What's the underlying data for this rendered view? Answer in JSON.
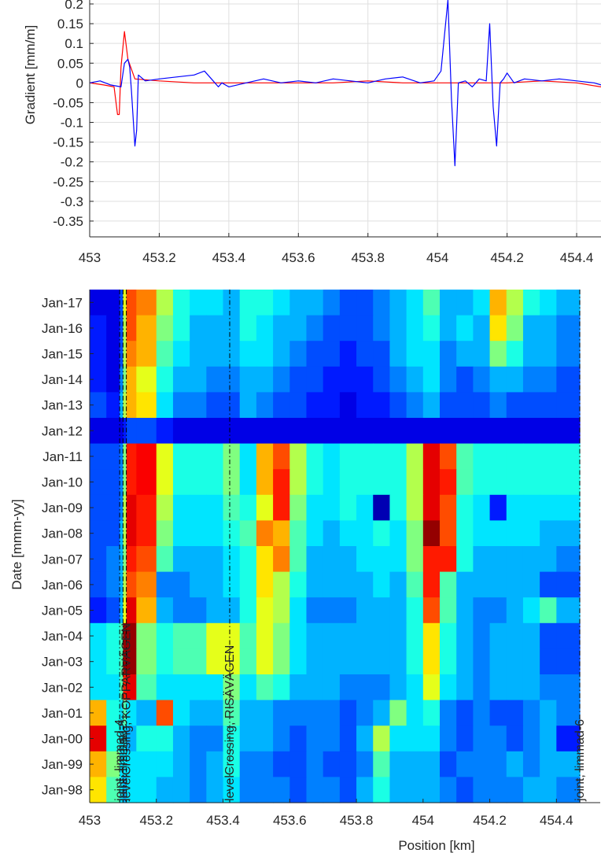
{
  "chart_data": [
    {
      "type": "line",
      "ylabel": "Gradient [mm/m]",
      "xlim": [
        453,
        454.47
      ],
      "ylim": [
        -0.39,
        0.21
      ],
      "grid": true,
      "xticks": [
        "453",
        "453.2",
        "453.4",
        "453.6",
        "453.8",
        "454",
        "454.2",
        "454.4"
      ],
      "yticks": [
        "0.2",
        "0.15",
        "0.1",
        "0.05",
        "0",
        "-0.05",
        "-0.1",
        "-0.15",
        "-0.2",
        "-0.25",
        "-0.3",
        "-0.35"
      ],
      "colors": {
        "blue": "#0000ff",
        "red": "#ff0000"
      },
      "series": [
        {
          "color": "#0000ff",
          "x": [
            453.0,
            453.03,
            453.06,
            453.09,
            453.1,
            453.11,
            453.115,
            453.12,
            453.13,
            453.135,
            453.14,
            453.16,
            453.2,
            453.25,
            453.3,
            453.33,
            453.35,
            453.37,
            453.38,
            453.4,
            453.45,
            453.5,
            453.55,
            453.6,
            453.65,
            453.7,
            453.75,
            453.8,
            453.85,
            453.9,
            453.95,
            453.99,
            454.01,
            454.02,
            454.03,
            454.04,
            454.05,
            454.06,
            454.08,
            454.1,
            454.12,
            454.14,
            454.15,
            454.16,
            454.17,
            454.18,
            454.19,
            454.2,
            454.22,
            454.25,
            454.3,
            454.35,
            454.4,
            454.45,
            454.47
          ],
          "y": [
            0.0,
            0.005,
            -0.005,
            -0.01,
            0.05,
            0.06,
            0.04,
            -0.02,
            -0.16,
            -0.12,
            0.02,
            0.005,
            0.01,
            0.015,
            0.02,
            0.03,
            0.01,
            -0.01,
            0.0,
            -0.01,
            0.0,
            0.01,
            0.0,
            0.005,
            0.0,
            0.01,
            0.005,
            0.0,
            0.01,
            0.015,
            0.0,
            0.005,
            0.03,
            0.12,
            0.21,
            -0.04,
            -0.21,
            0.0,
            0.005,
            -0.01,
            0.01,
            0.005,
            0.15,
            -0.06,
            -0.16,
            0.0,
            0.01,
            0.025,
            0.0,
            0.01,
            0.005,
            0.01,
            0.005,
            0.0,
            -0.005
          ]
        },
        {
          "color": "#ff0000",
          "x": [
            453.0,
            453.04,
            453.07,
            453.08,
            453.085,
            453.09,
            453.1,
            453.11,
            453.13,
            453.2,
            453.3,
            453.4,
            453.5,
            453.6,
            453.7,
            453.8,
            453.9,
            454.0,
            454.1,
            454.2,
            454.3,
            454.4,
            454.47
          ],
          "y": [
            0.0,
            -0.005,
            -0.01,
            -0.08,
            -0.08,
            0.04,
            0.13,
            0.06,
            0.01,
            0.005,
            0.0,
            0.0,
            0.0,
            0.0,
            0.0,
            0.005,
            0.0,
            0.0,
            0.0,
            0.0,
            0.005,
            0.0,
            -0.01
          ]
        }
      ]
    },
    {
      "type": "heatmap",
      "xlabel": "Position [km]",
      "ylabel": "Date [mmm-yy]",
      "xlim": [
        453,
        454.47
      ],
      "xticks": [
        "453",
        "453.2",
        "453.4",
        "453.6",
        "453.8",
        "454",
        "454.2",
        "454.4"
      ],
      "yticks": [
        "Jan-17",
        "Jan-16",
        "Jan-15",
        "Jan-14",
        "Jan-13",
        "Jan-12",
        "Jan-11",
        "Jan-10",
        "Jan-09",
        "Jan-08",
        "Jan-07",
        "Jan-06",
        "Jan-05",
        "Jan-04",
        "Jan-03",
        "Jan-02",
        "Jan-01",
        "Jan-00",
        "Jan-99",
        "Jan-98"
      ],
      "colormap": "jet",
      "x_edges": [
        453.0,
        453.05,
        453.09,
        453.1,
        453.11,
        453.14,
        453.2,
        453.25,
        453.3,
        453.35,
        453.4,
        453.45,
        453.5,
        453.55,
        453.6,
        453.65,
        453.7,
        453.75,
        453.8,
        453.85,
        453.9,
        453.95,
        454.0,
        454.05,
        454.1,
        454.15,
        454.2,
        454.25,
        454.3,
        454.35,
        454.4,
        454.47
      ],
      "rows": [
        {
          "label": "Jan-17",
          "values": [
            0.1,
            0.1,
            0.2,
            0.6,
            0.8,
            0.75,
            0.55,
            0.4,
            0.35,
            0.35,
            0.3,
            0.4,
            0.4,
            0.35,
            0.3,
            0.3,
            0.25,
            0.2,
            0.2,
            0.25,
            0.3,
            0.35,
            0.45,
            0.3,
            0.3,
            0.35,
            0.7,
            0.55,
            0.4,
            0.35,
            0.3
          ]
        },
        {
          "label": "Jan-16",
          "values": [
            0.15,
            0.1,
            0.2,
            0.55,
            0.8,
            0.7,
            0.5,
            0.4,
            0.3,
            0.3,
            0.3,
            0.4,
            0.35,
            0.3,
            0.3,
            0.25,
            0.2,
            0.2,
            0.2,
            0.25,
            0.3,
            0.35,
            0.4,
            0.3,
            0.35,
            0.3,
            0.65,
            0.5,
            0.3,
            0.3,
            0.25
          ]
        },
        {
          "label": "Jan-15",
          "values": [
            0.15,
            0.1,
            0.2,
            0.55,
            0.75,
            0.7,
            0.45,
            0.35,
            0.3,
            0.3,
            0.3,
            0.35,
            0.35,
            0.3,
            0.25,
            0.2,
            0.2,
            0.15,
            0.2,
            0.2,
            0.3,
            0.35,
            0.35,
            0.25,
            0.3,
            0.3,
            0.5,
            0.4,
            0.3,
            0.3,
            0.25
          ]
        },
        {
          "label": "Jan-14",
          "values": [
            0.15,
            0.1,
            0.25,
            0.5,
            0.7,
            0.6,
            0.4,
            0.3,
            0.3,
            0.25,
            0.25,
            0.3,
            0.3,
            0.25,
            0.2,
            0.2,
            0.15,
            0.15,
            0.15,
            0.2,
            0.25,
            0.3,
            0.35,
            0.25,
            0.2,
            0.25,
            0.3,
            0.3,
            0.25,
            0.25,
            0.2
          ]
        },
        {
          "label": "Jan-13",
          "values": [
            0.2,
            0.15,
            0.3,
            0.55,
            0.7,
            0.65,
            0.35,
            0.25,
            0.25,
            0.2,
            0.2,
            0.3,
            0.25,
            0.2,
            0.2,
            0.15,
            0.15,
            0.1,
            0.15,
            0.15,
            0.2,
            0.25,
            0.3,
            0.2,
            0.2,
            0.2,
            0.25,
            0.2,
            0.2,
            0.2,
            0.2
          ]
        },
        {
          "label": "Jan-12",
          "values": [
            0.1,
            0.1,
            0.1,
            0.15,
            0.2,
            0.2,
            0.15,
            0.1,
            0.1,
            0.1,
            0.1,
            0.1,
            0.1,
            0.1,
            0.1,
            0.1,
            0.1,
            0.1,
            0.1,
            0.1,
            0.1,
            0.1,
            0.1,
            0.1,
            0.1,
            0.1,
            0.1,
            0.1,
            0.1,
            0.1,
            0.1
          ]
        },
        {
          "label": "Jan-11",
          "values": [
            0.2,
            0.2,
            0.25,
            0.5,
            0.85,
            0.88,
            0.6,
            0.4,
            0.4,
            0.4,
            0.5,
            0.35,
            0.7,
            0.8,
            0.55,
            0.4,
            0.35,
            0.4,
            0.4,
            0.4,
            0.4,
            0.55,
            0.9,
            0.8,
            0.45,
            0.4,
            0.4,
            0.4,
            0.4,
            0.4,
            0.4
          ]
        },
        {
          "label": "Jan-10",
          "values": [
            0.2,
            0.2,
            0.25,
            0.5,
            0.85,
            0.88,
            0.6,
            0.4,
            0.4,
            0.4,
            0.5,
            0.35,
            0.7,
            0.85,
            0.55,
            0.4,
            0.35,
            0.4,
            0.4,
            0.4,
            0.4,
            0.55,
            0.9,
            0.85,
            0.45,
            0.4,
            0.4,
            0.4,
            0.4,
            0.4,
            0.4
          ]
        },
        {
          "label": "Jan-09",
          "values": [
            0.2,
            0.2,
            0.25,
            0.55,
            0.9,
            0.85,
            0.55,
            0.35,
            0.35,
            0.35,
            0.45,
            0.4,
            0.6,
            0.85,
            0.5,
            0.35,
            0.35,
            0.4,
            0.35,
            0.05,
            0.4,
            0.55,
            0.9,
            0.8,
            0.4,
            0.35,
            0.15,
            0.35,
            0.35,
            0.35,
            0.35
          ]
        },
        {
          "label": "Jan-08",
          "values": [
            0.2,
            0.2,
            0.3,
            0.55,
            0.9,
            0.85,
            0.5,
            0.35,
            0.35,
            0.35,
            0.4,
            0.45,
            0.75,
            0.7,
            0.45,
            0.35,
            0.3,
            0.35,
            0.35,
            0.4,
            0.35,
            0.5,
            0.98,
            0.8,
            0.4,
            0.35,
            0.35,
            0.35,
            0.35,
            0.3,
            0.3
          ]
        },
        {
          "label": "Jan-07",
          "values": [
            0.2,
            0.25,
            0.3,
            0.5,
            0.85,
            0.8,
            0.45,
            0.3,
            0.3,
            0.3,
            0.35,
            0.4,
            0.65,
            0.75,
            0.45,
            0.3,
            0.3,
            0.3,
            0.35,
            0.35,
            0.35,
            0.5,
            0.85,
            0.85,
            0.4,
            0.3,
            0.3,
            0.3,
            0.3,
            0.3,
            0.25
          ]
        },
        {
          "label": "Jan-06",
          "values": [
            0.2,
            0.25,
            0.3,
            0.55,
            0.8,
            0.75,
            0.25,
            0.25,
            0.3,
            0.3,
            0.35,
            0.4,
            0.65,
            0.55,
            0.4,
            0.3,
            0.3,
            0.3,
            0.3,
            0.35,
            0.3,
            0.45,
            0.85,
            0.45,
            0.3,
            0.3,
            0.3,
            0.3,
            0.3,
            0.2,
            0.2
          ]
        },
        {
          "label": "Jan-05",
          "values": [
            0.15,
            0.2,
            0.3,
            0.6,
            0.9,
            0.7,
            0.3,
            0.25,
            0.25,
            0.3,
            0.3,
            0.4,
            0.6,
            0.55,
            0.35,
            0.25,
            0.25,
            0.25,
            0.3,
            0.3,
            0.3,
            0.4,
            0.8,
            0.45,
            0.3,
            0.25,
            0.25,
            0.3,
            0.35,
            0.45,
            0.3
          ]
        },
        {
          "label": "Jan-04",
          "values": [
            0.35,
            0.4,
            0.45,
            0.98,
            0.98,
            0.5,
            0.4,
            0.45,
            0.45,
            0.6,
            0.6,
            0.45,
            0.6,
            0.5,
            0.35,
            0.3,
            0.3,
            0.3,
            0.3,
            0.3,
            0.3,
            0.4,
            0.65,
            0.4,
            0.3,
            0.25,
            0.3,
            0.3,
            0.3,
            0.2,
            0.2
          ]
        },
        {
          "label": "Jan-03",
          "values": [
            0.35,
            0.4,
            0.45,
            0.98,
            0.98,
            0.5,
            0.4,
            0.45,
            0.45,
            0.6,
            0.6,
            0.45,
            0.6,
            0.5,
            0.35,
            0.3,
            0.3,
            0.3,
            0.3,
            0.3,
            0.3,
            0.4,
            0.65,
            0.4,
            0.3,
            0.25,
            0.3,
            0.3,
            0.3,
            0.2,
            0.2
          ]
        },
        {
          "label": "Jan-02",
          "values": [
            0.35,
            0.35,
            0.45,
            0.85,
            0.9,
            0.45,
            0.35,
            0.35,
            0.35,
            0.35,
            0.5,
            0.35,
            0.45,
            0.4,
            0.3,
            0.3,
            0.3,
            0.25,
            0.25,
            0.25,
            0.3,
            0.35,
            0.6,
            0.35,
            0.3,
            0.25,
            0.3,
            0.3,
            0.3,
            0.25,
            0.25
          ]
        },
        {
          "label": "Jan-01",
          "values": [
            0.7,
            0.4,
            0.35,
            0.45,
            0.35,
            0.3,
            0.8,
            0.35,
            0.3,
            0.3,
            0.45,
            0.3,
            0.3,
            0.25,
            0.25,
            0.25,
            0.25,
            0.2,
            0.25,
            0.3,
            0.5,
            0.35,
            0.4,
            0.25,
            0.2,
            0.25,
            0.2,
            0.2,
            0.25,
            0.3,
            0.25
          ]
        },
        {
          "label": "Jan-00",
          "values": [
            0.9,
            0.4,
            0.35,
            0.35,
            0.3,
            0.4,
            0.4,
            0.3,
            0.25,
            0.25,
            0.4,
            0.3,
            0.3,
            0.25,
            0.2,
            0.25,
            0.25,
            0.2,
            0.3,
            0.55,
            0.35,
            0.35,
            0.35,
            0.25,
            0.2,
            0.25,
            0.25,
            0.2,
            0.25,
            0.3,
            0.15
          ]
        },
        {
          "label": "Jan-99",
          "values": [
            0.7,
            0.5,
            0.35,
            0.35,
            0.35,
            0.35,
            0.35,
            0.3,
            0.25,
            0.3,
            0.4,
            0.25,
            0.25,
            0.2,
            0.2,
            0.25,
            0.2,
            0.2,
            0.25,
            0.45,
            0.3,
            0.3,
            0.3,
            0.2,
            0.25,
            0.25,
            0.25,
            0.3,
            0.25,
            0.3,
            0.3
          ]
        },
        {
          "label": "Jan-98",
          "values": [
            0.65,
            0.45,
            0.35,
            0.3,
            0.35,
            0.35,
            0.3,
            0.3,
            0.25,
            0.3,
            0.35,
            0.25,
            0.25,
            0.25,
            0.2,
            0.25,
            0.25,
            0.2,
            0.3,
            0.4,
            0.3,
            0.3,
            0.3,
            0.25,
            0.2,
            0.25,
            0.25,
            0.25,
            0.3,
            0.3,
            0.25
          ]
        }
      ],
      "vertical_markers": [
        {
          "x": 453.09,
          "label": "joint, limmad-4"
        },
        {
          "x": 453.1,
          "label": "joint, limmad-5"
        },
        {
          "x": 453.11,
          "label": "levelCrossing, KOPPARVÄGEN"
        },
        {
          "x": 453.42,
          "label": "levelCrossing, RISÄVÄGEN"
        },
        {
          "x": 454.47,
          "label": "joint, limmad-6"
        }
      ]
    }
  ]
}
